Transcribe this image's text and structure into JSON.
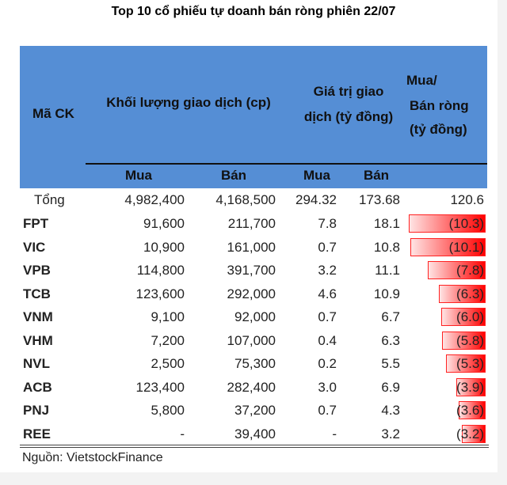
{
  "title": "Top 10 cổ phiếu tự doanh bán ròng phiên 22/07",
  "header": {
    "code": "Mã CK",
    "volume": "Khối lượng giao dịch (cp)",
    "value_l1": "Giá trị giao",
    "value_l2": "dịch (tỷ đồng)",
    "net_l1": "Mua/",
    "net_l2": "Bán ròng",
    "net_l3": "(tỷ đồng)",
    "buy": "Mua",
    "sell": "Bán"
  },
  "total": {
    "label": "Tổng",
    "vol_buy": "4,982,400",
    "vol_sell": "4,168,500",
    "val_buy": "294.32",
    "val_sell": "173.68",
    "net": "120.6"
  },
  "rows": [
    {
      "code": "FPT",
      "vol_buy": "91,600",
      "vol_sell": "211,700",
      "val_buy": "7.8",
      "val_sell": "18.1",
      "net": "(10.3)",
      "net_value": -10.3
    },
    {
      "code": "VIC",
      "vol_buy": "10,900",
      "vol_sell": "161,000",
      "val_buy": "0.7",
      "val_sell": "10.8",
      "net": "(10.1)",
      "net_value": -10.1
    },
    {
      "code": "VPB",
      "vol_buy": "114,800",
      "vol_sell": "391,700",
      "val_buy": "3.2",
      "val_sell": "11.1",
      "net": "(7.8)",
      "net_value": -7.8
    },
    {
      "code": "TCB",
      "vol_buy": "123,600",
      "vol_sell": "292,000",
      "val_buy": "4.6",
      "val_sell": "10.9",
      "net": "(6.3)",
      "net_value": -6.3
    },
    {
      "code": "VNM",
      "vol_buy": "9,100",
      "vol_sell": "92,000",
      "val_buy": "0.7",
      "val_sell": "6.7",
      "net": "(6.0)",
      "net_value": -6.0
    },
    {
      "code": "VHM",
      "vol_buy": "7,200",
      "vol_sell": "107,000",
      "val_buy": "0.4",
      "val_sell": "6.3",
      "net": "(5.8)",
      "net_value": -5.8
    },
    {
      "code": "NVL",
      "vol_buy": "2,500",
      "vol_sell": "75,300",
      "val_buy": "0.2",
      "val_sell": "5.5",
      "net": "(5.3)",
      "net_value": -5.3
    },
    {
      "code": "ACB",
      "vol_buy": "123,400",
      "vol_sell": "282,400",
      "val_buy": "3.0",
      "val_sell": "6.9",
      "net": "(3.9)",
      "net_value": -3.9
    },
    {
      "code": "PNJ",
      "vol_buy": "5,800",
      "vol_sell": "37,200",
      "val_buy": "0.7",
      "val_sell": "4.3",
      "net": "(3.6)",
      "net_value": -3.6
    },
    {
      "code": "REE",
      "vol_buy": "-",
      "vol_sell": "39,400",
      "val_buy": "-",
      "val_sell": "3.2",
      "net": "(3.2)",
      "net_value": -3.2
    }
  ],
  "source": "Nguồn: VietstockFinance",
  "colors": {
    "header": "#558ed5",
    "bar": "#ff0000"
  }
}
